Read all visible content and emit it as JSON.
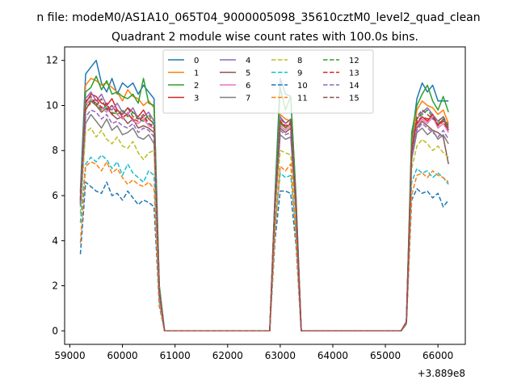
{
  "chart_data": {
    "type": "line",
    "suptitle": "n file: modeM0/AS1A10_065T04_9000005098_35610cztM0_level2_quad_clean",
    "title": "Quadrant 2 module wise count rates with 100.0s bins.",
    "xlabel": "",
    "ylabel": "",
    "x_offset_label": "+3.889e8",
    "xlim": [
      58900,
      66520
    ],
    "ylim": [
      -0.6,
      12.6
    ],
    "xticks": [
      59000,
      60000,
      61000,
      62000,
      63000,
      64000,
      65000,
      66000
    ],
    "yticks": [
      0,
      2,
      4,
      6,
      8,
      10,
      12
    ],
    "grid": false,
    "legend_position": "upper-center",
    "legend_ncol": 4,
    "x": [
      59200,
      59300,
      59400,
      59500,
      59600,
      59700,
      59800,
      59900,
      60000,
      60100,
      60200,
      60300,
      60400,
      60500,
      60600,
      60700,
      60800,
      60900,
      61000,
      62000,
      62800,
      62900,
      63000,
      63100,
      63200,
      63300,
      63400,
      63500,
      64000,
      65000,
      65300,
      65400,
      65500,
      65600,
      65700,
      65800,
      65900,
      66000,
      66100,
      66200
    ],
    "series": [
      {
        "name": "0",
        "color": "#1f77b4",
        "dash": "solid",
        "values": [
          6.2,
          11.4,
          11.7,
          12.0,
          11.0,
          10.6,
          11.2,
          10.5,
          11.0,
          10.8,
          11.0,
          10.5,
          10.9,
          10.6,
          10.3,
          2.0,
          0,
          0,
          0,
          0,
          0,
          6.0,
          11.2,
          10.5,
          10.4,
          6.0,
          0,
          0,
          0,
          0,
          0,
          0.4,
          8.5,
          10.3,
          11.0,
          10.6,
          10.9,
          10.2,
          10.2,
          10.2
        ]
      },
      {
        "name": "1",
        "color": "#ff7f0e",
        "dash": "solid",
        "values": [
          5.9,
          10.9,
          11.2,
          11.1,
          10.9,
          11.0,
          10.8,
          10.6,
          10.2,
          10.7,
          10.4,
          10.3,
          10.0,
          10.2,
          9.9,
          1.9,
          0,
          0,
          0,
          0,
          0,
          5.8,
          9.6,
          9.4,
          9.3,
          5.7,
          0,
          0,
          0,
          0,
          0,
          0.4,
          8.2,
          9.8,
          10.2,
          10.0,
          9.9,
          9.6,
          9.8,
          9.2
        ]
      },
      {
        "name": "2",
        "color": "#2ca02c",
        "dash": "solid",
        "values": [
          6.1,
          10.6,
          10.8,
          11.3,
          10.7,
          11.1,
          10.5,
          10.6,
          10.4,
          10.3,
          10.5,
          10.1,
          11.2,
          10.1,
          10.0,
          2.0,
          0,
          0,
          0,
          0,
          0,
          6.0,
          10.8,
          9.8,
          10.4,
          5.9,
          0,
          0,
          0,
          0,
          0,
          0.4,
          8.8,
          10.0,
          10.5,
          10.9,
          10.2,
          9.8,
          10.4,
          9.7
        ]
      },
      {
        "name": "3",
        "color": "#d62728",
        "dash": "solid",
        "values": [
          5.8,
          10.1,
          10.5,
          10.4,
          10.1,
          10.0,
          10.3,
          9.8,
          9.6,
          9.9,
          9.7,
          9.5,
          9.8,
          9.4,
          9.2,
          1.8,
          0,
          0,
          0,
          0,
          0,
          5.7,
          9.3,
          9.0,
          9.2,
          5.6,
          0,
          0,
          0,
          0,
          0,
          0.4,
          8.0,
          9.2,
          9.5,
          9.3,
          9.6,
          9.1,
          9.4,
          8.9
        ]
      },
      {
        "name": "4",
        "color": "#9467bd",
        "dash": "solid",
        "values": [
          5.9,
          10.3,
          10.6,
          10.2,
          10.5,
          10.0,
          9.8,
          10.1,
          9.7,
          9.6,
          9.9,
          9.4,
          9.5,
          9.7,
          9.3,
          1.8,
          0,
          0,
          0,
          0,
          0,
          5.8,
          9.5,
          9.2,
          9.4,
          5.6,
          0,
          0,
          0,
          0,
          0,
          0.4,
          8.1,
          9.4,
          9.7,
          9.9,
          9.6,
          9.3,
          9.5,
          9.0
        ]
      },
      {
        "name": "5",
        "color": "#8c564b",
        "dash": "solid",
        "values": [
          5.7,
          9.8,
          10.2,
          10.0,
          9.7,
          9.9,
          9.6,
          9.4,
          9.5,
          9.2,
          9.4,
          9.0,
          9.1,
          9.0,
          8.8,
          1.7,
          0,
          0,
          0,
          0,
          0,
          5.5,
          9.0,
          8.8,
          9.0,
          5.4,
          0,
          0,
          0,
          0,
          0,
          0.4,
          7.8,
          9.0,
          9.3,
          9.1,
          8.9,
          8.8,
          8.6,
          7.4
        ]
      },
      {
        "name": "6",
        "color": "#e377c2",
        "dash": "solid",
        "values": [
          5.8,
          10.0,
          10.3,
          10.1,
          9.9,
          9.7,
          10.0,
          9.6,
          9.4,
          9.7,
          9.3,
          9.2,
          9.4,
          9.1,
          9.0,
          1.7,
          0,
          0,
          0,
          0,
          0,
          5.6,
          9.1,
          8.9,
          9.1,
          5.5,
          0,
          0,
          0,
          0,
          0,
          0.4,
          7.9,
          9.1,
          9.4,
          9.2,
          9.5,
          9.0,
          9.2,
          8.8
        ]
      },
      {
        "name": "7",
        "color": "#7f7f7f",
        "dash": "solid",
        "values": [
          5.5,
          9.2,
          9.6,
          9.3,
          9.0,
          9.4,
          8.9,
          9.1,
          8.7,
          8.8,
          9.0,
          8.6,
          8.5,
          8.7,
          8.3,
          1.6,
          0,
          0,
          0,
          0,
          0,
          5.3,
          8.7,
          8.5,
          8.6,
          5.2,
          0,
          0,
          0,
          0,
          0,
          0.4,
          7.6,
          8.8,
          9.0,
          8.7,
          8.9,
          8.5,
          8.7,
          8.3
        ]
      },
      {
        "name": "8",
        "color": "#bcbd22",
        "dash": "dashed",
        "values": [
          5.2,
          8.8,
          9.0,
          8.6,
          8.9,
          8.5,
          8.3,
          8.6,
          8.2,
          8.1,
          8.4,
          7.9,
          7.6,
          7.9,
          8.0,
          1.5,
          0,
          0,
          0,
          0,
          0,
          5.0,
          8.0,
          7.9,
          7.8,
          4.9,
          0,
          0,
          0,
          0,
          0,
          0.3,
          7.2,
          8.2,
          8.5,
          8.3,
          8.0,
          8.2,
          7.9,
          7.7
        ]
      },
      {
        "name": "9",
        "color": "#17becf",
        "dash": "dashed",
        "values": [
          4.8,
          7.4,
          7.7,
          7.5,
          7.8,
          7.6,
          7.2,
          7.5,
          6.9,
          7.4,
          7.0,
          6.8,
          6.6,
          7.1,
          6.9,
          1.3,
          0,
          0,
          0,
          0,
          0,
          4.6,
          7.0,
          6.8,
          6.9,
          4.4,
          0,
          0,
          0,
          0,
          0,
          0.3,
          6.6,
          7.2,
          7.0,
          7.1,
          6.8,
          7.0,
          6.8,
          6.5
        ]
      },
      {
        "name": "10",
        "color": "#1f77b4",
        "dash": "dashed",
        "values": [
          3.4,
          6.6,
          6.4,
          6.2,
          6.1,
          6.6,
          6.0,
          6.1,
          5.8,
          6.2,
          5.9,
          5.6,
          5.8,
          5.7,
          5.5,
          1.1,
          0,
          0,
          0,
          0,
          0,
          4.0,
          6.2,
          6.2,
          6.1,
          3.8,
          0,
          0,
          0,
          0,
          0,
          0.3,
          5.8,
          6.3,
          6.1,
          6.2,
          5.9,
          6.1,
          5.5,
          5.8
        ]
      },
      {
        "name": "11",
        "color": "#ff7f0e",
        "dash": "dashed",
        "values": [
          3.9,
          7.3,
          7.5,
          7.4,
          7.1,
          7.5,
          7.0,
          7.2,
          6.8,
          6.5,
          6.7,
          6.5,
          6.4,
          6.6,
          6.3,
          1.2,
          0,
          0,
          0,
          0,
          0,
          4.3,
          7.3,
          7.1,
          7.4,
          4.1,
          0,
          0,
          0,
          0,
          0,
          0.3,
          6.0,
          6.9,
          7.0,
          6.8,
          7.1,
          6.9,
          6.8,
          6.6
        ]
      },
      {
        "name": "12",
        "color": "#2ca02c",
        "dash": "dashed",
        "values": [
          5.6,
          10.0,
          10.2,
          10.1,
          9.8,
          10.0,
          9.7,
          9.6,
          9.8,
          9.5,
          9.7,
          9.4,
          9.3,
          9.6,
          9.1,
          1.7,
          0,
          0,
          0,
          0,
          0,
          5.6,
          9.2,
          9.0,
          9.3,
          5.5,
          0,
          0,
          0,
          0,
          0,
          0.4,
          8.0,
          9.4,
          9.6,
          9.8,
          9.5,
          9.2,
          9.4,
          9.0
        ]
      },
      {
        "name": "13",
        "color": "#d62728",
        "dash": "dashed",
        "values": [
          5.7,
          9.9,
          10.1,
          10.3,
          9.9,
          10.1,
          9.6,
          9.8,
          9.5,
          9.6,
          9.4,
          9.3,
          9.5,
          9.2,
          9.0,
          1.7,
          0,
          0,
          0,
          0,
          0,
          5.6,
          9.3,
          9.1,
          9.2,
          5.5,
          0,
          0,
          0,
          0,
          0,
          0.4,
          7.9,
          9.3,
          9.5,
          9.4,
          9.6,
          9.1,
          9.3,
          8.9
        ]
      },
      {
        "name": "14",
        "color": "#9467bd",
        "dash": "dashed",
        "values": [
          5.6,
          9.5,
          9.8,
          9.7,
          9.4,
          9.6,
          9.2,
          9.3,
          9.1,
          9.0,
          9.2,
          8.8,
          9.0,
          8.9,
          8.6,
          1.6,
          0,
          0,
          0,
          0,
          0,
          5.4,
          8.9,
          8.7,
          8.8,
          5.3,
          0,
          0,
          0,
          0,
          0,
          0.4,
          7.7,
          8.9,
          9.2,
          9.0,
          8.8,
          8.6,
          8.9,
          8.5
        ]
      },
      {
        "name": "15",
        "color": "#8c564b",
        "dash": "dashed",
        "values": [
          5.8,
          10.2,
          10.4,
          10.0,
          10.3,
          9.8,
          10.0,
          9.7,
          9.6,
          9.9,
          9.5,
          9.4,
          9.6,
          9.2,
          9.1,
          1.8,
          0,
          0,
          0,
          0,
          0,
          5.6,
          9.4,
          9.2,
          9.4,
          5.5,
          0,
          0,
          0,
          0,
          0,
          0.4,
          8.1,
          9.5,
          9.8,
          9.6,
          9.4,
          9.3,
          9.5,
          9.1
        ]
      }
    ]
  }
}
